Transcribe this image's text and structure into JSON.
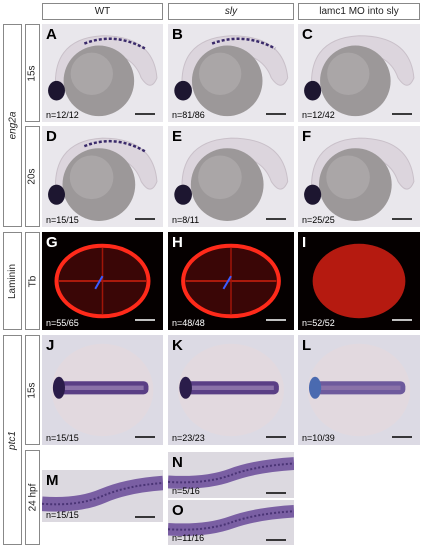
{
  "columns": [
    "WT",
    "sly",
    "lamc1 MO into sly"
  ],
  "gene_labels": [
    "eng2a",
    "Laminin",
    "ptc1"
  ],
  "stage_labels": [
    "15s",
    "20s",
    "Tb",
    "15s",
    "24 hpf"
  ],
  "panels": [
    {
      "letter": "A",
      "count": "n=12/12"
    },
    {
      "letter": "B",
      "count": "n=81/86"
    },
    {
      "letter": "C",
      "count": "n=12/42"
    },
    {
      "letter": "D",
      "count": "n=15/15"
    },
    {
      "letter": "E",
      "count": "n=8/11"
    },
    {
      "letter": "F",
      "count": "n=25/25"
    },
    {
      "letter": "G",
      "count": "n=55/65"
    },
    {
      "letter": "H",
      "count": "n=48/48"
    },
    {
      "letter": "I",
      "count": "n=52/52"
    },
    {
      "letter": "J",
      "count": "n=15/15"
    },
    {
      "letter": "K",
      "count": "n=23/23"
    },
    {
      "letter": "L",
      "count": "n=10/39"
    },
    {
      "letter": "M",
      "count": "n=15/15"
    },
    {
      "letter": "N",
      "count": "n=5/16"
    },
    {
      "letter": "O",
      "count": "n=11/16"
    }
  ]
}
